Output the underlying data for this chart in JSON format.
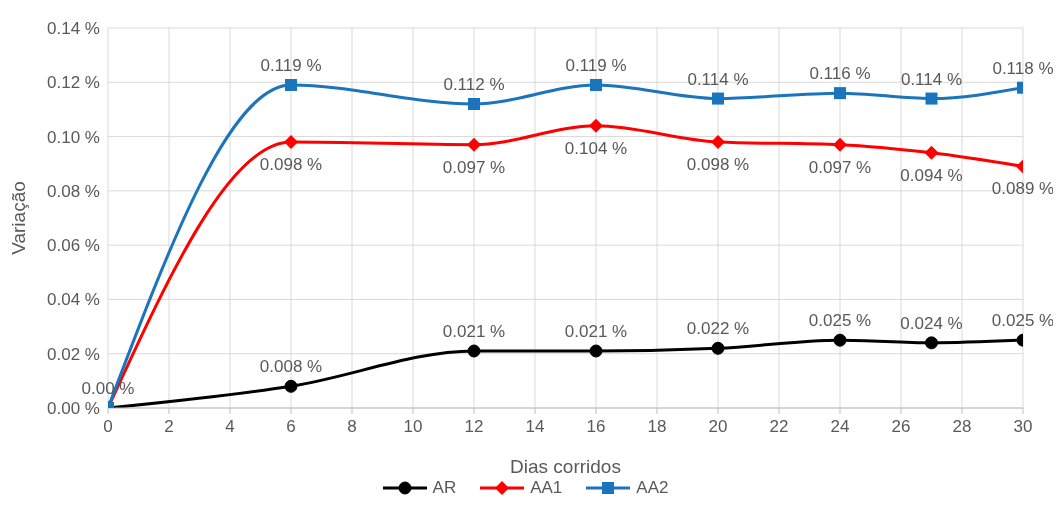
{
  "chart_data": {
    "type": "line",
    "xlabel": "Dias corridos",
    "ylabel": "Variação",
    "x": [
      0,
      6,
      12,
      16,
      20,
      24,
      27,
      30
    ],
    "series": [
      {
        "name": "AR",
        "color": "#000000",
        "marker": "circle",
        "values": [
          0,
          0.008,
          0.021,
          0.021,
          0.022,
          0.025,
          0.024,
          0.025
        ],
        "value_labels": [
          "0.00 %",
          "0.008 %",
          "0.021 %",
          "0.021 %",
          "0.022 %",
          "0.025 %",
          "0.024 %",
          "0.025 %"
        ]
      },
      {
        "name": "AA1",
        "color": "#ff0000",
        "marker": "diamond",
        "values": [
          0,
          0.098,
          0.097,
          0.104,
          0.098,
          0.097,
          0.094,
          0.089
        ],
        "value_labels": [
          null,
          "0.098 %",
          "0.097 %",
          "0.104 %",
          "0.098 %",
          "0.097 %",
          "0.094 %",
          "0.089 %"
        ]
      },
      {
        "name": "AA2",
        "color": "#1b75bc",
        "marker": "square",
        "values": [
          0,
          0.119,
          0.112,
          0.119,
          0.114,
          0.116,
          0.114,
          0.118
        ],
        "value_labels": [
          null,
          "0.119 %",
          "0.112 %",
          "0.119 %",
          "0.114 %",
          "0.116 %",
          "0.114 %",
          "0.118 %"
        ]
      }
    ],
    "xlim": [
      0,
      30
    ],
    "xticks": [
      0,
      2,
      4,
      6,
      8,
      10,
      12,
      14,
      16,
      18,
      20,
      22,
      24,
      26,
      28,
      30
    ],
    "ylim": [
      0,
      0.14
    ],
    "yticks": [
      {
        "value": 0,
        "label": "0.00 %"
      },
      {
        "value": 0.02,
        "label": "0.02 %"
      },
      {
        "value": 0.04,
        "label": "0.04 %"
      },
      {
        "value": 0.06,
        "label": "0.06 %"
      },
      {
        "value": 0.08,
        "label": "0.08 %"
      },
      {
        "value": 0.1,
        "label": "0.10 %"
      },
      {
        "value": 0.12,
        "label": "0.12 %"
      },
      {
        "value": 0.14,
        "label": "0.14 %"
      }
    ],
    "grid": true,
    "legend": "bottom",
    "line_style": "solid"
  }
}
